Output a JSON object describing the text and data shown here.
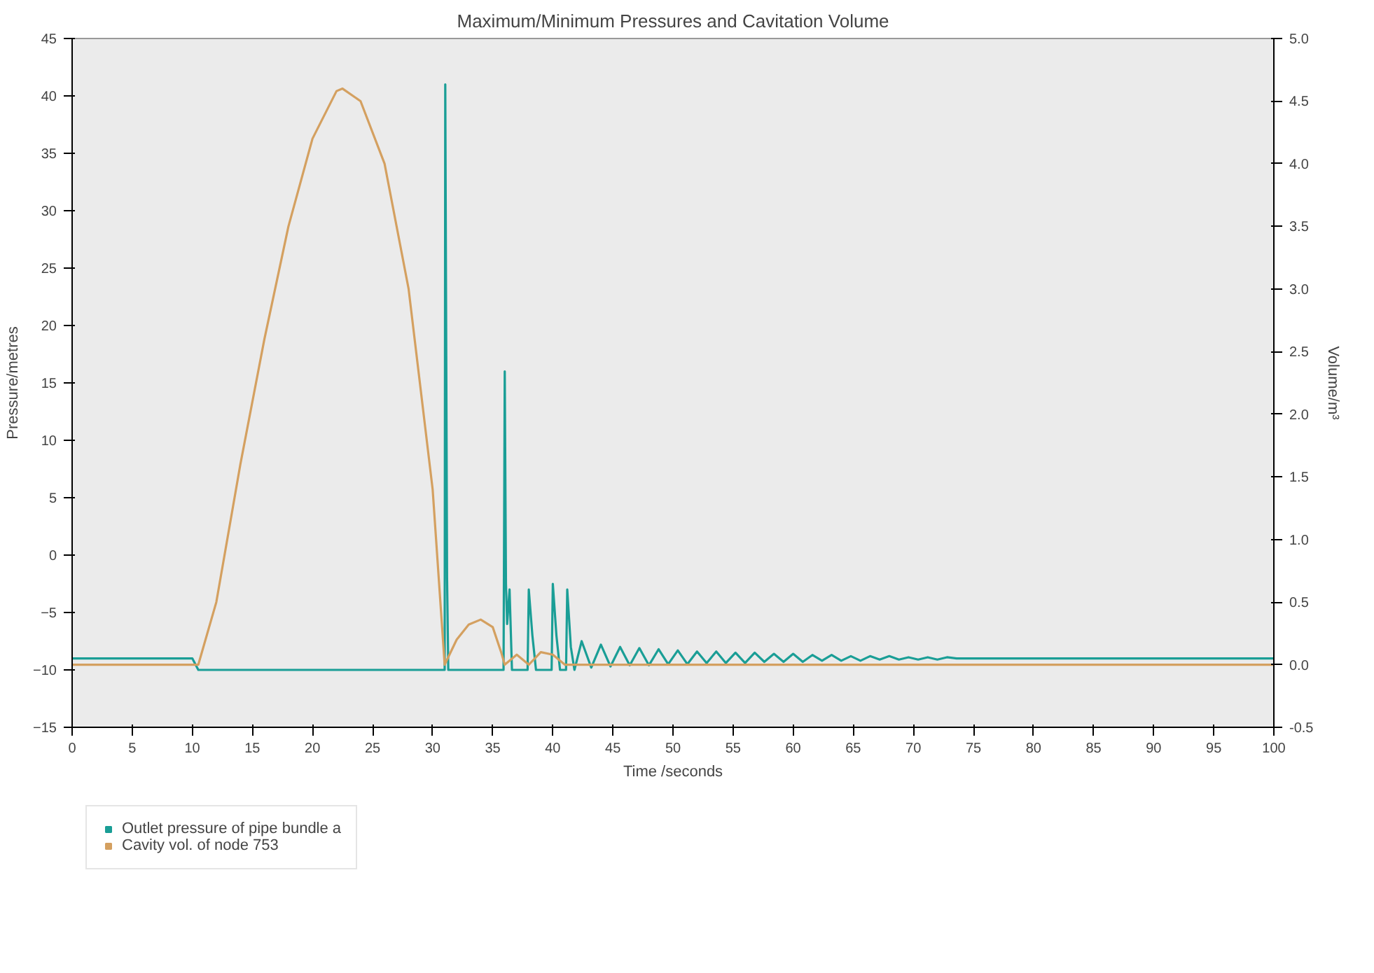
{
  "chart_data": {
    "type": "line",
    "title": "Maximum/Minimum Pressures and Cavitation Volume",
    "xlabel": "Time /seconds",
    "ylabel": "Pressure/metres",
    "y2label": "Volume/m³",
    "xlim": [
      0,
      100
    ],
    "xticks": [
      0,
      5,
      10,
      15,
      20,
      25,
      30,
      35,
      40,
      45,
      50,
      55,
      60,
      65,
      70,
      75,
      80,
      85,
      90,
      95,
      100
    ],
    "ylim": [
      -15,
      45
    ],
    "yticks": [
      -15,
      -10,
      -5,
      0,
      5,
      10,
      15,
      20,
      25,
      30,
      35,
      40,
      45
    ],
    "y2lim": [
      -0.5,
      5.0
    ],
    "y2ticks": [
      {
        "value": -0.5,
        "label": "-0.5"
      },
      {
        "value": 0,
        "label": "0.0"
      },
      {
        "value": 0.5,
        "label": "0.5"
      },
      {
        "value": 1,
        "label": "1.0"
      },
      {
        "value": 1.5,
        "label": "1.5"
      },
      {
        "value": 2,
        "label": "2.0"
      },
      {
        "value": 2.5,
        "label": "2.5"
      },
      {
        "value": 3,
        "label": "3.0"
      },
      {
        "value": 3.5,
        "label": "3.5"
      },
      {
        "value": 4,
        "label": "4.0"
      },
      {
        "value": 4.5,
        "label": "4.5"
      },
      {
        "value": 5,
        "label": "5.0"
      }
    ],
    "grid": false,
    "legend": "bottom",
    "line_style": "solid",
    "series": [
      {
        "name": "Outlet pressure of pipe bundle a",
        "color": "#1a9e96",
        "x": [
          0,
          10,
          10.5,
          31,
          31.05,
          31.2,
          31.3,
          35.9,
          36,
          36.1,
          36.2,
          36.4,
          36.6,
          37.9,
          38,
          38.3,
          38.6,
          39.9,
          40,
          40.3,
          40.6,
          41.1,
          41.2,
          41.5,
          41.8,
          42.4,
          43.2,
          44,
          44.8,
          45.6,
          46.4,
          47.2,
          48,
          48.8,
          49.6,
          50.4,
          51.2,
          52,
          52.8,
          53.6,
          54.4,
          55.2,
          56,
          56.8,
          57.6,
          58.4,
          59.2,
          60,
          60.8,
          61.6,
          62.4,
          63.2,
          64,
          64.8,
          65.6,
          66.4,
          67.2,
          68,
          68.8,
          69.6,
          70.4,
          71.2,
          72,
          72.8,
          73.6,
          75,
          100
        ],
        "values": [
          -9,
          -9,
          -10,
          -10,
          41,
          -2,
          -10,
          -10,
          16,
          -2.5,
          -6,
          -3,
          -10,
          -10,
          -3,
          -7,
          -10,
          -10,
          -2.5,
          -7,
          -10,
          -10,
          -3,
          -8,
          -10,
          -7.5,
          -9.8,
          -7.8,
          -9.7,
          -8,
          -9.6,
          -8.1,
          -9.6,
          -8.2,
          -9.5,
          -8.3,
          -9.5,
          -8.4,
          -9.4,
          -8.4,
          -9.4,
          -8.5,
          -9.4,
          -8.5,
          -9.3,
          -8.6,
          -9.3,
          -8.6,
          -9.3,
          -8.7,
          -9.2,
          -8.7,
          -9.2,
          -8.8,
          -9.2,
          -8.8,
          -9.1,
          -8.8,
          -9.1,
          -8.9,
          -9.1,
          -8.9,
          -9.1,
          -8.9,
          -9,
          -9,
          -9
        ]
      },
      {
        "name": "Cavity vol. of node 753",
        "color": "#d4a060",
        "axis": "y2",
        "x": [
          0,
          10.5,
          12,
          14,
          16,
          18,
          20,
          22,
          22.5,
          24,
          26,
          28,
          30,
          31,
          32,
          33,
          34,
          35,
          35.7,
          36,
          37,
          38,
          39,
          40,
          41,
          42,
          100
        ],
        "values": [
          0,
          0,
          0.5,
          1.6,
          2.6,
          3.5,
          4.2,
          4.58,
          4.6,
          4.5,
          4.0,
          3.0,
          1.4,
          0,
          0.2,
          0.32,
          0.36,
          0.3,
          0.1,
          0,
          0.08,
          0,
          0.1,
          0.08,
          0,
          0,
          0
        ]
      }
    ]
  }
}
